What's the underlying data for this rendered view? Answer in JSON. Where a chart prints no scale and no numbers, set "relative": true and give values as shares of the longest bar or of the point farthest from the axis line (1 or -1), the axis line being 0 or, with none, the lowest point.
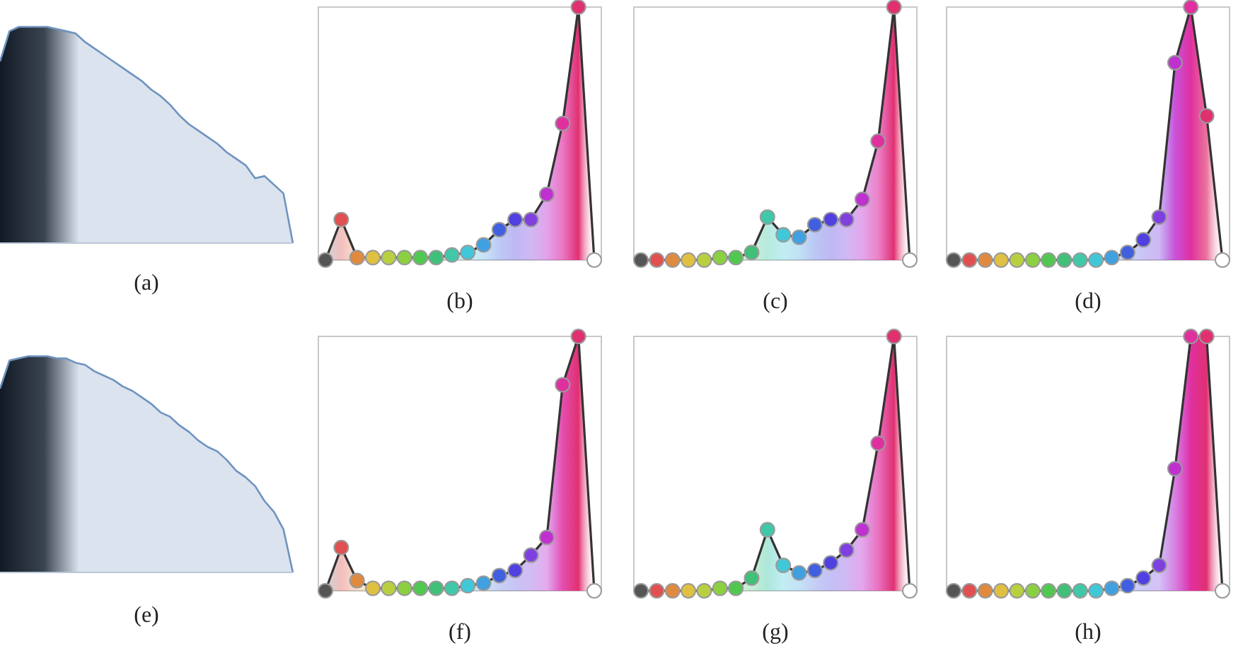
{
  "chart_data": [
    {
      "type": "area",
      "title": "(a)",
      "relative": true,
      "marker": "none",
      "categories": [
        null,
        null,
        null,
        null,
        null,
        null,
        null,
        null,
        null,
        null,
        null,
        null,
        null,
        null,
        null,
        null,
        null,
        null,
        null,
        null,
        null,
        null,
        null,
        null,
        null,
        null,
        null,
        null,
        null,
        null,
        null,
        null
      ],
      "series": [
        {
          "color": "#6f93c0",
          "values": [
            0.84,
            0.98,
            1,
            1,
            1,
            1,
            0.99,
            0.98,
            0.97,
            0.93,
            0.9,
            0.87,
            0.84,
            0.81,
            0.78,
            0.75,
            0.71,
            0.68,
            0.64,
            0.59,
            0.55,
            0.52,
            0.49,
            0.46,
            0.42,
            0.39,
            0.36,
            0.3,
            0.31,
            0.27,
            0.23,
            0
          ]
        }
      ]
    },
    {
      "type": "area",
      "title": "(b)",
      "relative": true,
      "marker": "circle",
      "categories": [
        null,
        null,
        null,
        null,
        null,
        null,
        null,
        null,
        null,
        null,
        null,
        null,
        null,
        null,
        null,
        null,
        null,
        null
      ],
      "series": [
        {
          "color": "#333333",
          "colors": [
            "#555555",
            "#e05050",
            "#e08a40",
            "#e0c040",
            "#b8d040",
            "#8ad040",
            "#50c850",
            "#40c078",
            "#40c8a8",
            "#40c8d8",
            "#40a0e0",
            "#4060e0",
            "#5040e0",
            "#8040e0",
            "#c030d0",
            "#e030a0",
            "#e03070",
            "#ffffff"
          ],
          "values": [
            0,
            0.16,
            0.01,
            0.01,
            0.01,
            0.01,
            0.01,
            0.01,
            0.02,
            0.03,
            0.06,
            0.12,
            0.16,
            0.16,
            0.26,
            0.54,
            1,
            0
          ]
        }
      ]
    },
    {
      "type": "area",
      "title": "(c)",
      "relative": true,
      "marker": "circle",
      "categories": [
        null,
        null,
        null,
        null,
        null,
        null,
        null,
        null,
        null,
        null,
        null,
        null,
        null,
        null,
        null,
        null,
        null,
        null
      ],
      "series": [
        {
          "color": "#333333",
          "colors": [
            "#555555",
            "#e05050",
            "#e08a40",
            "#e0c040",
            "#b8d040",
            "#8ad040",
            "#50c850",
            "#40c078",
            "#40c8a8",
            "#40c8d8",
            "#40a0e0",
            "#4060e0",
            "#5040e0",
            "#8040e0",
            "#c030d0",
            "#e030a0",
            "#e03070",
            "#ffffff"
          ],
          "values": [
            0,
            0,
            0,
            0,
            0,
            0.01,
            0.01,
            0.03,
            0.17,
            0.1,
            0.09,
            0.14,
            0.16,
            0.16,
            0.24,
            0.47,
            1,
            0
          ]
        }
      ]
    },
    {
      "type": "area",
      "title": "(d)",
      "relative": true,
      "marker": "circle",
      "categories": [
        null,
        null,
        null,
        null,
        null,
        null,
        null,
        null,
        null,
        null,
        null,
        null,
        null,
        null,
        null,
        null,
        null,
        null
      ],
      "series": [
        {
          "color": "#333333",
          "colors": [
            "#555555",
            "#e05050",
            "#e08a40",
            "#e0c040",
            "#b8d040",
            "#8ad040",
            "#50c850",
            "#40c078",
            "#40c8a8",
            "#40c8d8",
            "#40a0e0",
            "#4060e0",
            "#5040e0",
            "#8040e0",
            "#c030d0",
            "#e030a0",
            "#e03070",
            "#ffffff"
          ],
          "values": [
            0,
            0,
            0,
            0,
            0,
            0,
            0,
            0,
            0,
            0,
            0.01,
            0.03,
            0.08,
            0.17,
            0.78,
            1,
            0.57,
            0
          ]
        }
      ]
    },
    {
      "type": "area",
      "title": "(e)",
      "relative": true,
      "marker": "none",
      "categories": [
        null,
        null,
        null,
        null,
        null,
        null,
        null,
        null,
        null,
        null,
        null,
        null,
        null,
        null,
        null,
        null,
        null,
        null,
        null,
        null,
        null,
        null,
        null,
        null,
        null,
        null,
        null,
        null,
        null,
        null,
        null,
        null
      ],
      "series": [
        {
          "color": "#6f93c0",
          "values": [
            0.85,
            0.98,
            0.99,
            1,
            1,
            1,
            0.99,
            0.99,
            0.97,
            0.96,
            0.93,
            0.91,
            0.89,
            0.86,
            0.84,
            0.81,
            0.78,
            0.74,
            0.72,
            0.68,
            0.65,
            0.61,
            0.58,
            0.56,
            0.52,
            0.47,
            0.44,
            0.4,
            0.33,
            0.28,
            0.2,
            0
          ]
        }
      ]
    },
    {
      "type": "area",
      "title": "(f)",
      "relative": true,
      "marker": "circle",
      "categories": [
        null,
        null,
        null,
        null,
        null,
        null,
        null,
        null,
        null,
        null,
        null,
        null,
        null,
        null,
        null,
        null,
        null,
        null
      ],
      "series": [
        {
          "color": "#333333",
          "colors": [
            "#555555",
            "#e05050",
            "#e08a40",
            "#e0c040",
            "#b8d040",
            "#8ad040",
            "#50c850",
            "#40c078",
            "#40c8a8",
            "#40c8d8",
            "#40a0e0",
            "#4060e0",
            "#5040e0",
            "#8040e0",
            "#c030d0",
            "#e030a0",
            "#e03070",
            "#ffffff"
          ],
          "values": [
            0,
            0.17,
            0.04,
            0.01,
            0.01,
            0.01,
            0.01,
            0.01,
            0.01,
            0.02,
            0.03,
            0.06,
            0.08,
            0.14,
            0.21,
            0.81,
            1,
            0
          ]
        }
      ]
    },
    {
      "type": "area",
      "title": "(g)",
      "relative": true,
      "marker": "circle",
      "categories": [
        null,
        null,
        null,
        null,
        null,
        null,
        null,
        null,
        null,
        null,
        null,
        null,
        null,
        null,
        null,
        null,
        null,
        null
      ],
      "series": [
        {
          "color": "#333333",
          "colors": [
            "#555555",
            "#e05050",
            "#e08a40",
            "#e0c040",
            "#b8d040",
            "#8ad040",
            "#50c850",
            "#40c078",
            "#40c8a8",
            "#40c8d8",
            "#40a0e0",
            "#4060e0",
            "#5040e0",
            "#8040e0",
            "#c030d0",
            "#e030a0",
            "#e03070",
            "#ffffff"
          ],
          "values": [
            0,
            0,
            0,
            0,
            0,
            0.01,
            0.01,
            0.05,
            0.24,
            0.1,
            0.07,
            0.08,
            0.11,
            0.16,
            0.24,
            0.58,
            1,
            0
          ]
        }
      ]
    },
    {
      "type": "area",
      "title": "(h)",
      "relative": true,
      "marker": "circle",
      "categories": [
        null,
        null,
        null,
        null,
        null,
        null,
        null,
        null,
        null,
        null,
        null,
        null,
        null,
        null,
        null,
        null,
        null,
        null
      ],
      "series": [
        {
          "color": "#333333",
          "colors": [
            "#555555",
            "#e05050",
            "#e08a40",
            "#e0c040",
            "#b8d040",
            "#8ad040",
            "#50c850",
            "#40c078",
            "#40c8a8",
            "#40c8d8",
            "#40a0e0",
            "#4060e0",
            "#5040e0",
            "#8040e0",
            "#c030d0",
            "#e030a0",
            "#e03070",
            "#ffffff"
          ],
          "values": [
            0,
            0,
            0,
            0,
            0,
            0,
            0,
            0,
            0,
            0,
            0.01,
            0.02,
            0.05,
            0.1,
            0.48,
            1,
            1,
            0
          ]
        }
      ]
    }
  ]
}
